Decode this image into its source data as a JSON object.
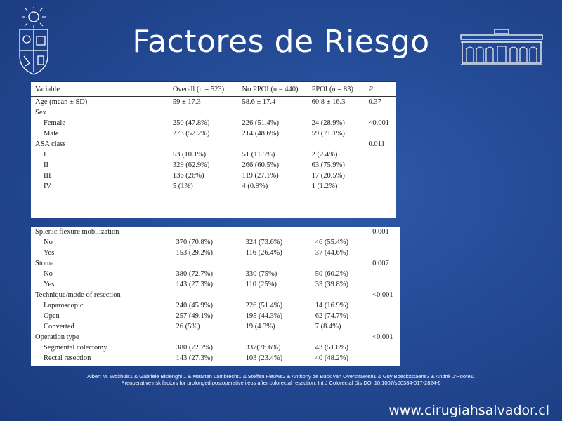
{
  "slide": {
    "title": "Factores de Riesgo",
    "citation_line1": "Albert M. Wolthuis1 & Gabriele Bislenghi 1 & Maarten Lambrecht1 & Steffen Fieuws2 & Anthony de Buck van Overstraeten1 & Guy Boeckxstaens3 & André D'Hoore1.",
    "citation_line2": "Preoperative risk factors for prolonged postoperative ileus after colorectal resection. Int J Colorectal Dis DOI 10.1007/s00384-017-2824-6",
    "footer_url": "www.cirugiahsalvador.cl"
  },
  "table": {
    "headers": [
      "Variable",
      "Overall (n = 523)",
      "No PPOI (n = 440)",
      "PPOI (n = 83)",
      "P"
    ],
    "panel1_rows": [
      {
        "label": "Age (mean ± SD)",
        "indent": false,
        "overall": "59 ± 17.3",
        "no_ppoi": "58.6 ± 17.4",
        "ppoi": "60.8 ± 16.3",
        "p": "0.37"
      },
      {
        "label": "Sex",
        "indent": false,
        "overall": "",
        "no_ppoi": "",
        "ppoi": "",
        "p": ""
      },
      {
        "label": "Female",
        "indent": true,
        "overall": "250 (47.8%)",
        "no_ppoi": "226 (51.4%)",
        "ppoi": "24 (28.9%)",
        "p": "<0.001"
      },
      {
        "label": "Male",
        "indent": true,
        "overall": "273 (52.2%)",
        "no_ppoi": "214 (48.6%)",
        "ppoi": "59 (71.1%)",
        "p": ""
      },
      {
        "label": "ASA class",
        "indent": false,
        "overall": "",
        "no_ppoi": "",
        "ppoi": "",
        "p": "0.011"
      },
      {
        "label": "I",
        "indent": true,
        "overall": "53 (10.1%)",
        "no_ppoi": "51 (11.5%)",
        "ppoi": "2 (2.4%)",
        "p": ""
      },
      {
        "label": "II",
        "indent": true,
        "overall": "329 (62.9%)",
        "no_ppoi": "266 (60.5%)",
        "ppoi": "63 (75.9%)",
        "p": ""
      },
      {
        "label": "III",
        "indent": true,
        "overall": "136 (26%)",
        "no_ppoi": "119 (27.1%)",
        "ppoi": "17 (20.5%)",
        "p": ""
      },
      {
        "label": "IV",
        "indent": true,
        "overall": "5 (1%)",
        "no_ppoi": "4 (0.9%)",
        "ppoi": "1 (1.2%)",
        "p": ""
      }
    ],
    "panel2_rows": [
      {
        "label": "Splenic flexure mobilization",
        "indent": false,
        "overall": "",
        "no_ppoi": "",
        "ppoi": "",
        "p": "0.001"
      },
      {
        "label": "No",
        "indent": true,
        "overall": "370 (70.8%)",
        "no_ppoi": "324 (73.6%)",
        "ppoi": "46 (55.4%)",
        "p": ""
      },
      {
        "label": "Yes",
        "indent": true,
        "overall": "153 (29.2%)",
        "no_ppoi": "116 (26.4%)",
        "ppoi": "37 (44.6%)",
        "p": ""
      },
      {
        "label": "Stoma",
        "indent": false,
        "overall": "",
        "no_ppoi": "",
        "ppoi": "",
        "p": "0.007"
      },
      {
        "label": "No",
        "indent": true,
        "overall": "380 (72.7%)",
        "no_ppoi": "330 (75%)",
        "ppoi": "50 (60.2%)",
        "p": ""
      },
      {
        "label": "Yes",
        "indent": true,
        "overall": "143 (27.3%)",
        "no_ppoi": "110 (25%)",
        "ppoi": "33 (39.8%)",
        "p": ""
      },
      {
        "label": "Technique/mode of resection",
        "indent": false,
        "overall": "",
        "no_ppoi": "",
        "ppoi": "",
        "p": "<0.001"
      },
      {
        "label": "Laparoscopic",
        "indent": true,
        "overall": "240 (45.9%)",
        "no_ppoi": "226 (51.4%)",
        "ppoi": "14 (16.9%)",
        "p": ""
      },
      {
        "label": "Open",
        "indent": true,
        "overall": "257 (49.1%)",
        "no_ppoi": "195 (44.3%)",
        "ppoi": "62 (74.7%)",
        "p": ""
      },
      {
        "label": "Converted",
        "indent": true,
        "overall": "26 (5%)",
        "no_ppoi": "19 (4.3%)",
        "ppoi": "7 (8.4%)",
        "p": ""
      },
      {
        "label": "Operation type",
        "indent": false,
        "overall": "",
        "no_ppoi": "",
        "ppoi": "",
        "p": "<0.001"
      },
      {
        "label": "Segmental colectomy",
        "indent": true,
        "overall": "380 (72.7%)",
        "no_ppoi": "337(76.6%)",
        "ppoi": "43 (51.8%)",
        "p": ""
      },
      {
        "label": "Rectal resection",
        "indent": true,
        "overall": "143 (27.3%)",
        "no_ppoi": "103 (23.4%)",
        "ppoi": "40 (48.2%)",
        "p": ""
      }
    ]
  },
  "icons": {
    "left_logo": "university-crest-icon",
    "right_logo": "hospital-building-icon"
  }
}
